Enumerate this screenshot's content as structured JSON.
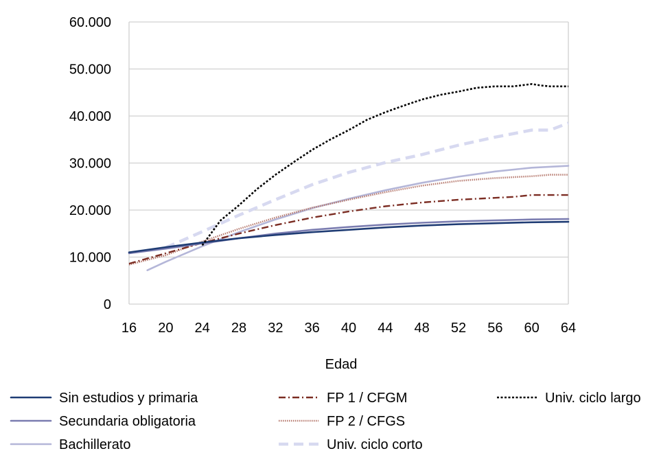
{
  "chart_data": {
    "type": "line",
    "title": "",
    "xlabel": "Edad",
    "ylabel": "",
    "xlim": [
      16,
      64
    ],
    "ylim": [
      0,
      60000
    ],
    "x_ticks": [
      16,
      20,
      24,
      28,
      32,
      36,
      40,
      44,
      48,
      52,
      56,
      60,
      64
    ],
    "x_tick_labels": [
      "16",
      "20",
      "24",
      "28",
      "32",
      "36",
      "40",
      "44",
      "48",
      "52",
      "56",
      "60",
      "64"
    ],
    "y_ticks": [
      0,
      10000,
      20000,
      30000,
      40000,
      50000,
      60000
    ],
    "y_tick_labels": [
      "0",
      "10.000",
      "20.000",
      "30.000",
      "40.000",
      "50.000",
      "60.000"
    ],
    "grid": "horizontal",
    "legend": "bottom",
    "series": [
      {
        "name": "Sin estudios y primaria",
        "color": "#1f3c74",
        "style": "solid",
        "x": [
          16,
          20,
          24,
          28,
          32,
          36,
          40,
          44,
          48,
          52,
          56,
          60,
          64
        ],
        "y": [
          11000,
          12100,
          13100,
          14000,
          14700,
          15300,
          15800,
          16300,
          16700,
          17000,
          17200,
          17400,
          17500
        ]
      },
      {
        "name": "Secundaria obligatoria",
        "color": "#7a7cb0",
        "style": "solid",
        "x": [
          16,
          20,
          24,
          28,
          32,
          36,
          40,
          44,
          48,
          52,
          56,
          60,
          64
        ],
        "y": [
          10800,
          11800,
          12900,
          14000,
          15000,
          15800,
          16400,
          16900,
          17300,
          17600,
          17800,
          18000,
          18100
        ]
      },
      {
        "name": "Bachillerato",
        "color": "#b4b6d8",
        "style": "solid",
        "x": [
          18,
          20,
          24,
          28,
          32,
          36,
          40,
          44,
          48,
          52,
          56,
          60,
          64
        ],
        "y": [
          7200,
          9000,
          12300,
          15300,
          18000,
          20400,
          22400,
          24200,
          25800,
          27100,
          28200,
          29000,
          29400
        ]
      },
      {
        "name": "FP 1 / CFGM",
        "color": "#7b2c22",
        "style": "dashdot",
        "x": [
          16,
          20,
          24,
          28,
          32,
          36,
          40,
          44,
          48,
          52,
          56,
          58,
          60,
          62,
          64
        ],
        "y": [
          8600,
          10800,
          13000,
          15000,
          16800,
          18400,
          19700,
          20800,
          21600,
          22200,
          22600,
          22800,
          23200,
          23200,
          23200
        ]
      },
      {
        "name": "FP 2 / CFGS",
        "color": "#b87d72",
        "style": "dotted",
        "x": [
          16,
          20,
          24,
          28,
          32,
          36,
          40,
          44,
          48,
          52,
          56,
          60,
          62,
          64
        ],
        "y": [
          8400,
          10400,
          13300,
          16000,
          18400,
          20500,
          22200,
          23800,
          25200,
          26200,
          26800,
          27200,
          27500,
          27500
        ]
      },
      {
        "name": "Univ. ciclo corto",
        "color": "#d7d9f0",
        "style": "dashed",
        "x": [
          20,
          24,
          28,
          32,
          36,
          40,
          44,
          48,
          52,
          56,
          60,
          62,
          64
        ],
        "y": [
          12000,
          15400,
          18900,
          22200,
          25400,
          28000,
          30100,
          31800,
          33800,
          35500,
          37000,
          37000,
          38500
        ]
      },
      {
        "name": "Univ. ciclo largo",
        "color": "#000000",
        "style": "dotted",
        "x": [
          24,
          26,
          28,
          30,
          32,
          34,
          36,
          38,
          40,
          42,
          44,
          46,
          48,
          50,
          52,
          54,
          56,
          58,
          60,
          61,
          62,
          64
        ],
        "y": [
          12500,
          17800,
          21000,
          24500,
          27500,
          30200,
          32800,
          35000,
          37000,
          39200,
          40800,
          42200,
          43500,
          44500,
          45200,
          46000,
          46300,
          46300,
          46800,
          46500,
          46300,
          46300
        ]
      }
    ]
  }
}
